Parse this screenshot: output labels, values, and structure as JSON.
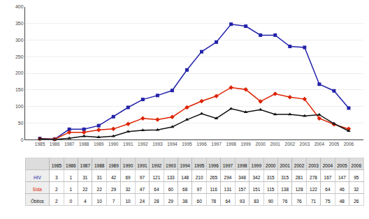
{
  "chart_data": {
    "type": "line",
    "x": [
      1985,
      1986,
      1987,
      1988,
      1989,
      1990,
      1991,
      1992,
      1993,
      1994,
      1995,
      1996,
      1997,
      1998,
      1999,
      2000,
      2001,
      2002,
      2003,
      2004,
      2005,
      2006
    ],
    "xlim": [
      1984,
      2007
    ],
    "xticks": [
      1985,
      1986,
      1987,
      1988,
      1989,
      1990,
      1991,
      1992,
      1993,
      1994,
      1995,
      1996,
      1997,
      1998,
      1999,
      2000,
      2001,
      2002,
      2003,
      2004,
      2005,
      2006
    ],
    "ylim": [
      0,
      400
    ],
    "yticks": [
      0,
      50,
      100,
      150,
      200,
      250,
      300,
      350,
      400
    ],
    "grid": "y",
    "series": [
      {
        "name": "HIV",
        "color": "#2222aa",
        "marker": "square",
        "values": [
          3,
          1,
          31,
          31,
          42,
          69,
          97,
          121,
          133,
          148,
          210,
          265,
          294,
          348,
          342,
          315,
          315,
          281,
          278,
          167,
          147,
          95
        ]
      },
      {
        "name": "Sida",
        "color": "#dd2200",
        "marker": "diamond",
        "values": [
          2,
          1,
          22,
          22,
          29,
          32,
          47,
          64,
          60,
          68,
          97,
          116,
          131,
          157,
          151,
          115,
          138,
          128,
          122,
          64,
          46,
          32
        ]
      },
      {
        "name": "Óbitos",
        "color": "#111111",
        "marker": "triangle-up",
        "values": [
          2,
          0,
          4,
          10,
          7,
          10,
          24,
          28,
          29,
          38,
          60,
          78,
          64,
          93,
          83,
          90,
          76,
          76,
          71,
          75,
          48,
          26
        ]
      }
    ]
  }
}
